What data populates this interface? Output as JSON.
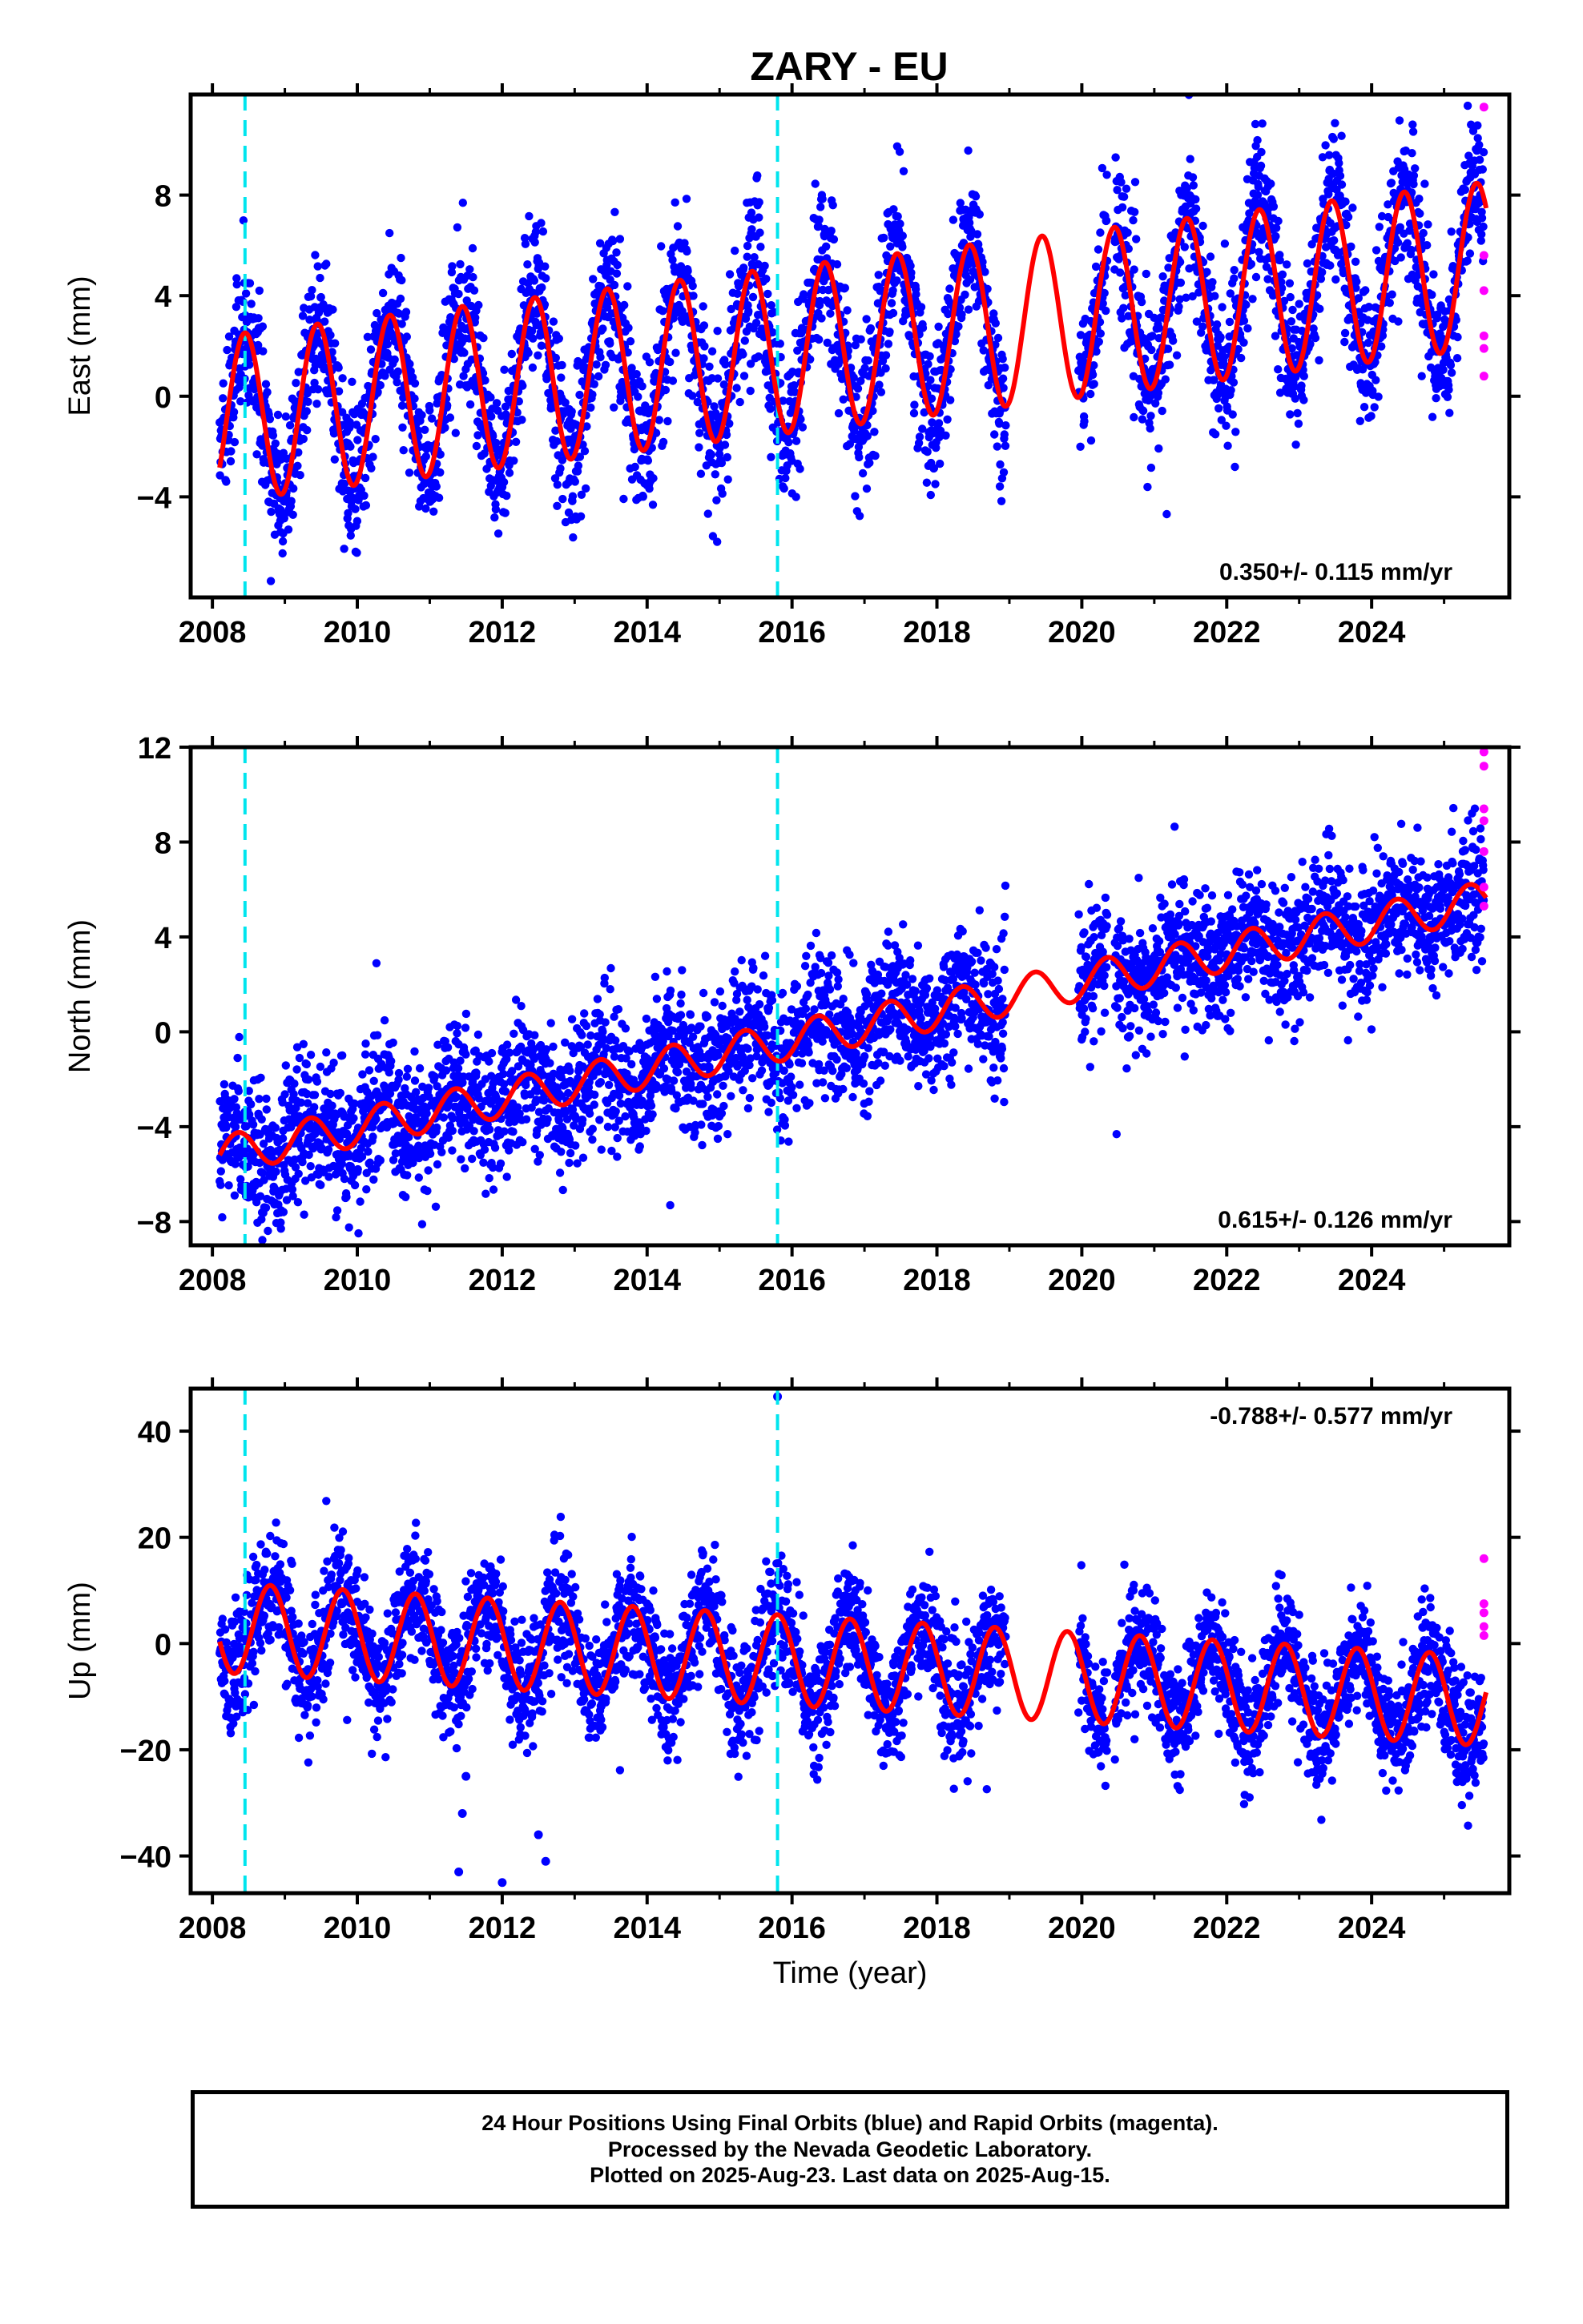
{
  "figure": {
    "title": "ZARY - EU",
    "xlabel": "Time (year)",
    "caption": [
      "24 Hour Positions Using Final Orbits (blue) and Rapid Orbits (magenta).",
      "Processed by the Nevada Geodetic Laboratory.",
      "Plotted on 2025-Aug-23. Last data on 2025-Aug-15."
    ],
    "colors": {
      "final": "#0000ff",
      "rapid": "#ff00ff",
      "model": "#ff0000",
      "event": "#00e5ee",
      "frame": "#000000"
    }
  },
  "chart_data": [
    {
      "type": "scatter",
      "ylabel": "East (mm)",
      "rate": "0.350+/- 0.115 mm/yr",
      "xlim": [
        2007.7,
        2025.9
      ],
      "ylim": [
        -8.0,
        12.0
      ],
      "xticks": [
        2008,
        2010,
        2012,
        2014,
        2016,
        2018,
        2020,
        2022,
        2024
      ],
      "yticks": [
        -4,
        0,
        4,
        8
      ],
      "x_tick_labels": [
        "2008",
        "2010",
        "2012",
        "2014",
        "2016",
        "2018",
        "2020",
        "2022",
        "2024"
      ],
      "y_tick_labels": [
        "−4",
        "0",
        "4",
        "8"
      ],
      "event_lines": [
        2008.45,
        2015.8
      ],
      "model": {
        "offset": -0.9,
        "rate": 0.35,
        "amplitude": 3.3,
        "phase_year": 0.2
      },
      "rapid_points": [
        [
          2025.55,
          11.5
        ],
        [
          2025.55,
          5.6
        ],
        [
          2025.55,
          4.2
        ],
        [
          2025.55,
          2.4
        ],
        [
          2025.55,
          1.9
        ],
        [
          2025.55,
          0.8
        ]
      ]
    },
    {
      "type": "scatter",
      "ylabel": "North (mm)",
      "rate": "0.615+/- 0.126 mm/yr",
      "xlim": [
        2007.7,
        2025.9
      ],
      "ylim": [
        -9.0,
        12.0
      ],
      "xticks": [
        2008,
        2010,
        2012,
        2014,
        2016,
        2018,
        2020,
        2022,
        2024
      ],
      "yticks": [
        -8,
        -4,
        0,
        4,
        8,
        12
      ],
      "x_tick_labels": [
        "2008",
        "2010",
        "2012",
        "2014",
        "2016",
        "2018",
        "2020",
        "2022",
        "2024"
      ],
      "y_tick_labels": [
        "−8",
        "−4",
        "0",
        "4",
        "8",
        "12"
      ],
      "event_lines": [
        2008.45,
        2015.8
      ],
      "model": {
        "offset": -5.2,
        "rate": 0.615,
        "amplitude": 0.8,
        "phase_year": 0.1
      },
      "rapid_points": [
        [
          2025.55,
          11.8
        ],
        [
          2025.55,
          11.2
        ],
        [
          2025.55,
          9.4
        ],
        [
          2025.55,
          8.9
        ],
        [
          2025.55,
          7.6
        ],
        [
          2025.55,
          6.1
        ],
        [
          2025.55,
          5.3
        ]
      ]
    },
    {
      "type": "scatter",
      "ylabel": "Up (mm)",
      "rate": "-0.788+/- 0.577 mm/yr",
      "xlim": [
        2007.7,
        2025.9
      ],
      "ylim": [
        -47.0,
        48.0
      ],
      "xticks": [
        2008,
        2010,
        2012,
        2014,
        2016,
        2018,
        2020,
        2022,
        2024
      ],
      "yticks": [
        -40,
        -20,
        0,
        20,
        40
      ],
      "x_tick_labels": [
        "2008",
        "2010",
        "2012",
        "2014",
        "2016",
        "2018",
        "2020",
        "2022",
        "2024"
      ],
      "y_tick_labels": [
        "−40",
        "−20",
        "0",
        "20",
        "40"
      ],
      "event_lines": [
        2008.45,
        2015.8
      ],
      "model": {
        "offset": 3.0,
        "rate": -0.788,
        "amplitude": 8.5,
        "phase_year": 0.55
      },
      "outliers": [
        [
          2015.8,
          46.5
        ],
        [
          2011.4,
          -43.0
        ],
        [
          2012.0,
          -45.0
        ],
        [
          2012.5,
          -36.0
        ],
        [
          2012.6,
          -41.0
        ],
        [
          2011.5,
          -25.0
        ],
        [
          2011.45,
          -32.0
        ]
      ],
      "rapid_points": [
        [
          2025.55,
          16.0
        ],
        [
          2025.55,
          7.5
        ],
        [
          2025.55,
          5.8
        ],
        [
          2025.55,
          3.2
        ],
        [
          2025.55,
          1.5
        ]
      ]
    }
  ]
}
